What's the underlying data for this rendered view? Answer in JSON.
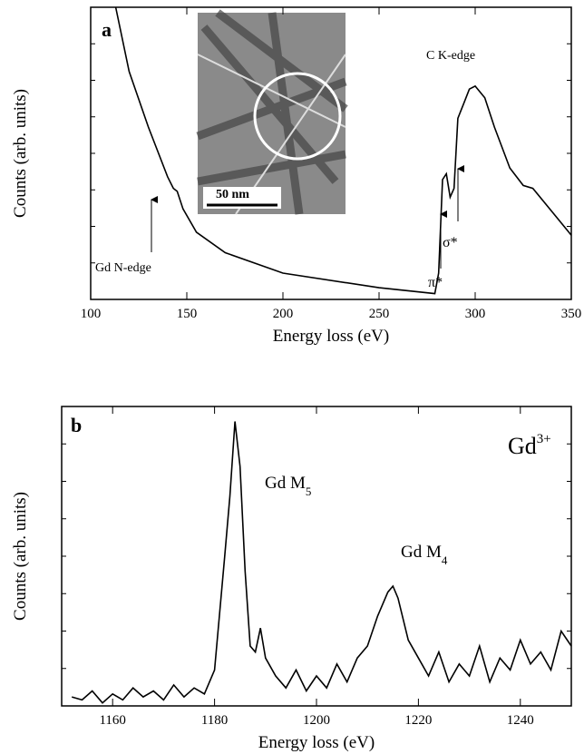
{
  "chart_data": [
    {
      "type": "line",
      "panel": "a",
      "x_label": "Energy loss (eV)",
      "y_label": "Counts (arb. units)",
      "xlim": [
        100,
        350
      ],
      "xticks": [
        100,
        150,
        200,
        250,
        300,
        350
      ],
      "ylim": [
        0,
        100
      ],
      "color": "#000000",
      "annotations": {
        "edge_c": "C K-edge",
        "edge_gd": "Gd N-edge",
        "pi": "π*",
        "sigma": "σ*",
        "scale": "50 nm"
      },
      "x": [
        113,
        120,
        130,
        140,
        143,
        145,
        148,
        155,
        170,
        200,
        250,
        279,
        281,
        283,
        285,
        287,
        289,
        291,
        294,
        297,
        300,
        305,
        310,
        318,
        325,
        330,
        340,
        350
      ],
      "values": [
        100,
        78,
        59,
        42,
        38,
        37,
        31,
        23,
        16,
        9,
        4,
        2,
        9,
        41,
        43,
        35,
        38,
        62,
        67,
        72,
        73,
        69,
        59,
        45,
        39,
        38,
        30,
        22
      ]
    },
    {
      "type": "line",
      "panel": "b",
      "x_label": "Energy loss (eV)",
      "y_label": "Counts (arb. units)",
      "xlim": [
        1150,
        1250
      ],
      "xticks": [
        1160,
        1180,
        1200,
        1220,
        1240
      ],
      "ylim": [
        0,
        100
      ],
      "color": "#000000",
      "annotations": {
        "ion": "Gd",
        "ion_sup": "3+",
        "m5": "Gd M",
        "m5_sub": "5",
        "m4": "Gd M",
        "m4_sub": "4"
      },
      "x": [
        1152,
        1154,
        1156,
        1158,
        1160,
        1162,
        1164,
        1166,
        1168,
        1170,
        1172,
        1174,
        1176,
        1178,
        1180,
        1182,
        1183,
        1184,
        1185,
        1186,
        1187,
        1188,
        1189,
        1190,
        1192,
        1194,
        1196,
        1198,
        1200,
        1202,
        1204,
        1206,
        1208,
        1210,
        1212,
        1214,
        1215,
        1216,
        1218,
        1220,
        1222,
        1224,
        1226,
        1228,
        1230,
        1232,
        1234,
        1236,
        1238,
        1240,
        1242,
        1244,
        1246,
        1248,
        1250
      ],
      "values": [
        3,
        2,
        5,
        1,
        4,
        2,
        6,
        3,
        5,
        2,
        7,
        3,
        6,
        4,
        12,
        50,
        70,
        95,
        80,
        45,
        20,
        18,
        26,
        16,
        10,
        6,
        12,
        5,
        10,
        6,
        14,
        8,
        16,
        20,
        30,
        38,
        40,
        36,
        22,
        16,
        10,
        18,
        8,
        14,
        10,
        20,
        8,
        16,
        12,
        22,
        14,
        18,
        12,
        25,
        20
      ]
    }
  ]
}
